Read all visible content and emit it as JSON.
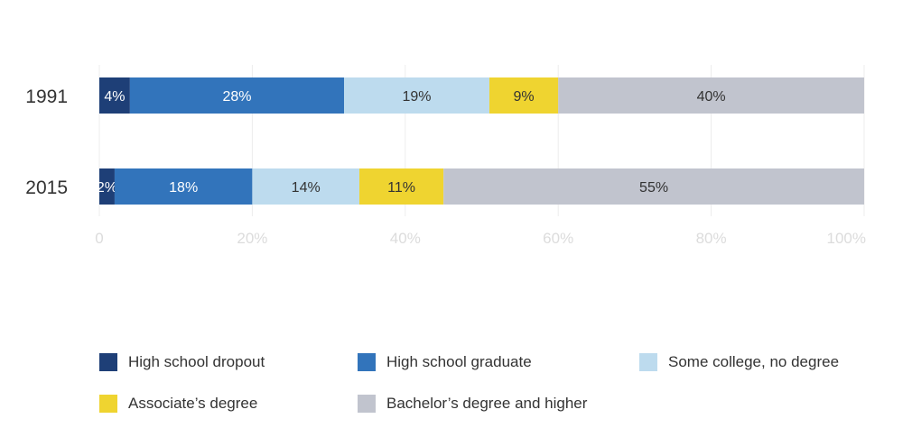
{
  "chart_data": {
    "type": "bar",
    "orientation": "horizontal",
    "stacked": true,
    "categories": [
      "1991",
      "2015"
    ],
    "series": [
      {
        "name": "High school dropout",
        "color": "#1e3f77",
        "values": [
          4,
          2
        ],
        "labels": [
          "4%",
          "2%"
        ]
      },
      {
        "name": "High school graduate",
        "color": "#3274bb",
        "values": [
          28,
          18
        ],
        "labels": [
          "28%",
          "18%"
        ]
      },
      {
        "name": "Some college, no degree",
        "color": "#bddbee",
        "values": [
          19,
          14
        ],
        "labels": [
          "19%",
          "14%"
        ]
      },
      {
        "name": "Associate’s degree",
        "color": "#efd430",
        "values": [
          9,
          11
        ],
        "labels": [
          "9%",
          "11%"
        ]
      },
      {
        "name": "Bachelor’s degree and higher",
        "color": "#c1c4ce",
        "values": [
          40,
          55
        ],
        "labels": [
          "40%",
          "55%"
        ]
      }
    ],
    "xlim": [
      0,
      100
    ],
    "xticks": [
      "0",
      "20%",
      "40%",
      "60%",
      "80%",
      "100%"
    ],
    "xtick_values": [
      0,
      20,
      40,
      60,
      80,
      100
    ],
    "grid": true,
    "legend_position": "bottom",
    "title": "",
    "xlabel": "",
    "ylabel": ""
  }
}
